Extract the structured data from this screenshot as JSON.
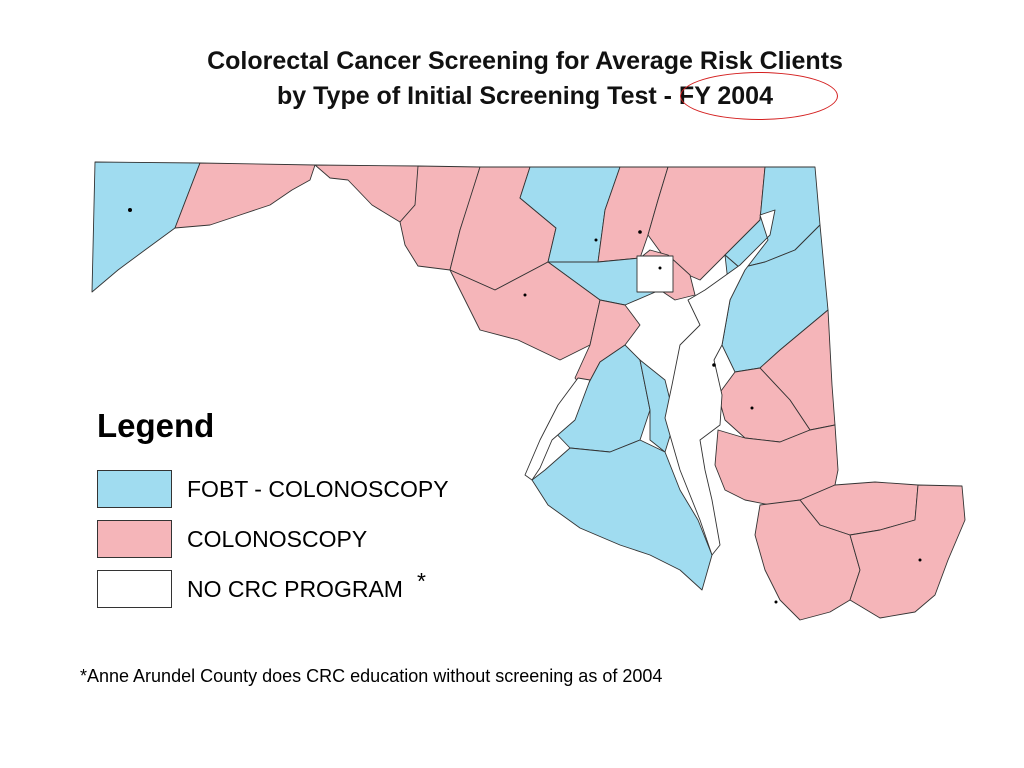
{
  "title_line1": "Colorectal Cancer Screening for Average Risk Clients",
  "title_line2_prefix": "by Type of Initial Screening Test ",
  "title_line2_highlight": "- FY 2004",
  "colors": {
    "fobt_colonoscopy": "#a0dcf0",
    "colonoscopy": "#f5b5b9",
    "no_program": "#ffffff",
    "highlight_circle": "#d42020"
  },
  "legend": {
    "title": "Legend",
    "items": [
      {
        "label": "FOBT - COLONOSCOPY",
        "color": "#a0dcf0"
      },
      {
        "label": "COLONOSCOPY",
        "color": "#f5b5b9"
      },
      {
        "label": "NO CRC PROGRAM",
        "color": "#ffffff",
        "marker": "*"
      }
    ]
  },
  "footnote": "*Anne Arundel County does CRC education without screening as of 2004"
}
